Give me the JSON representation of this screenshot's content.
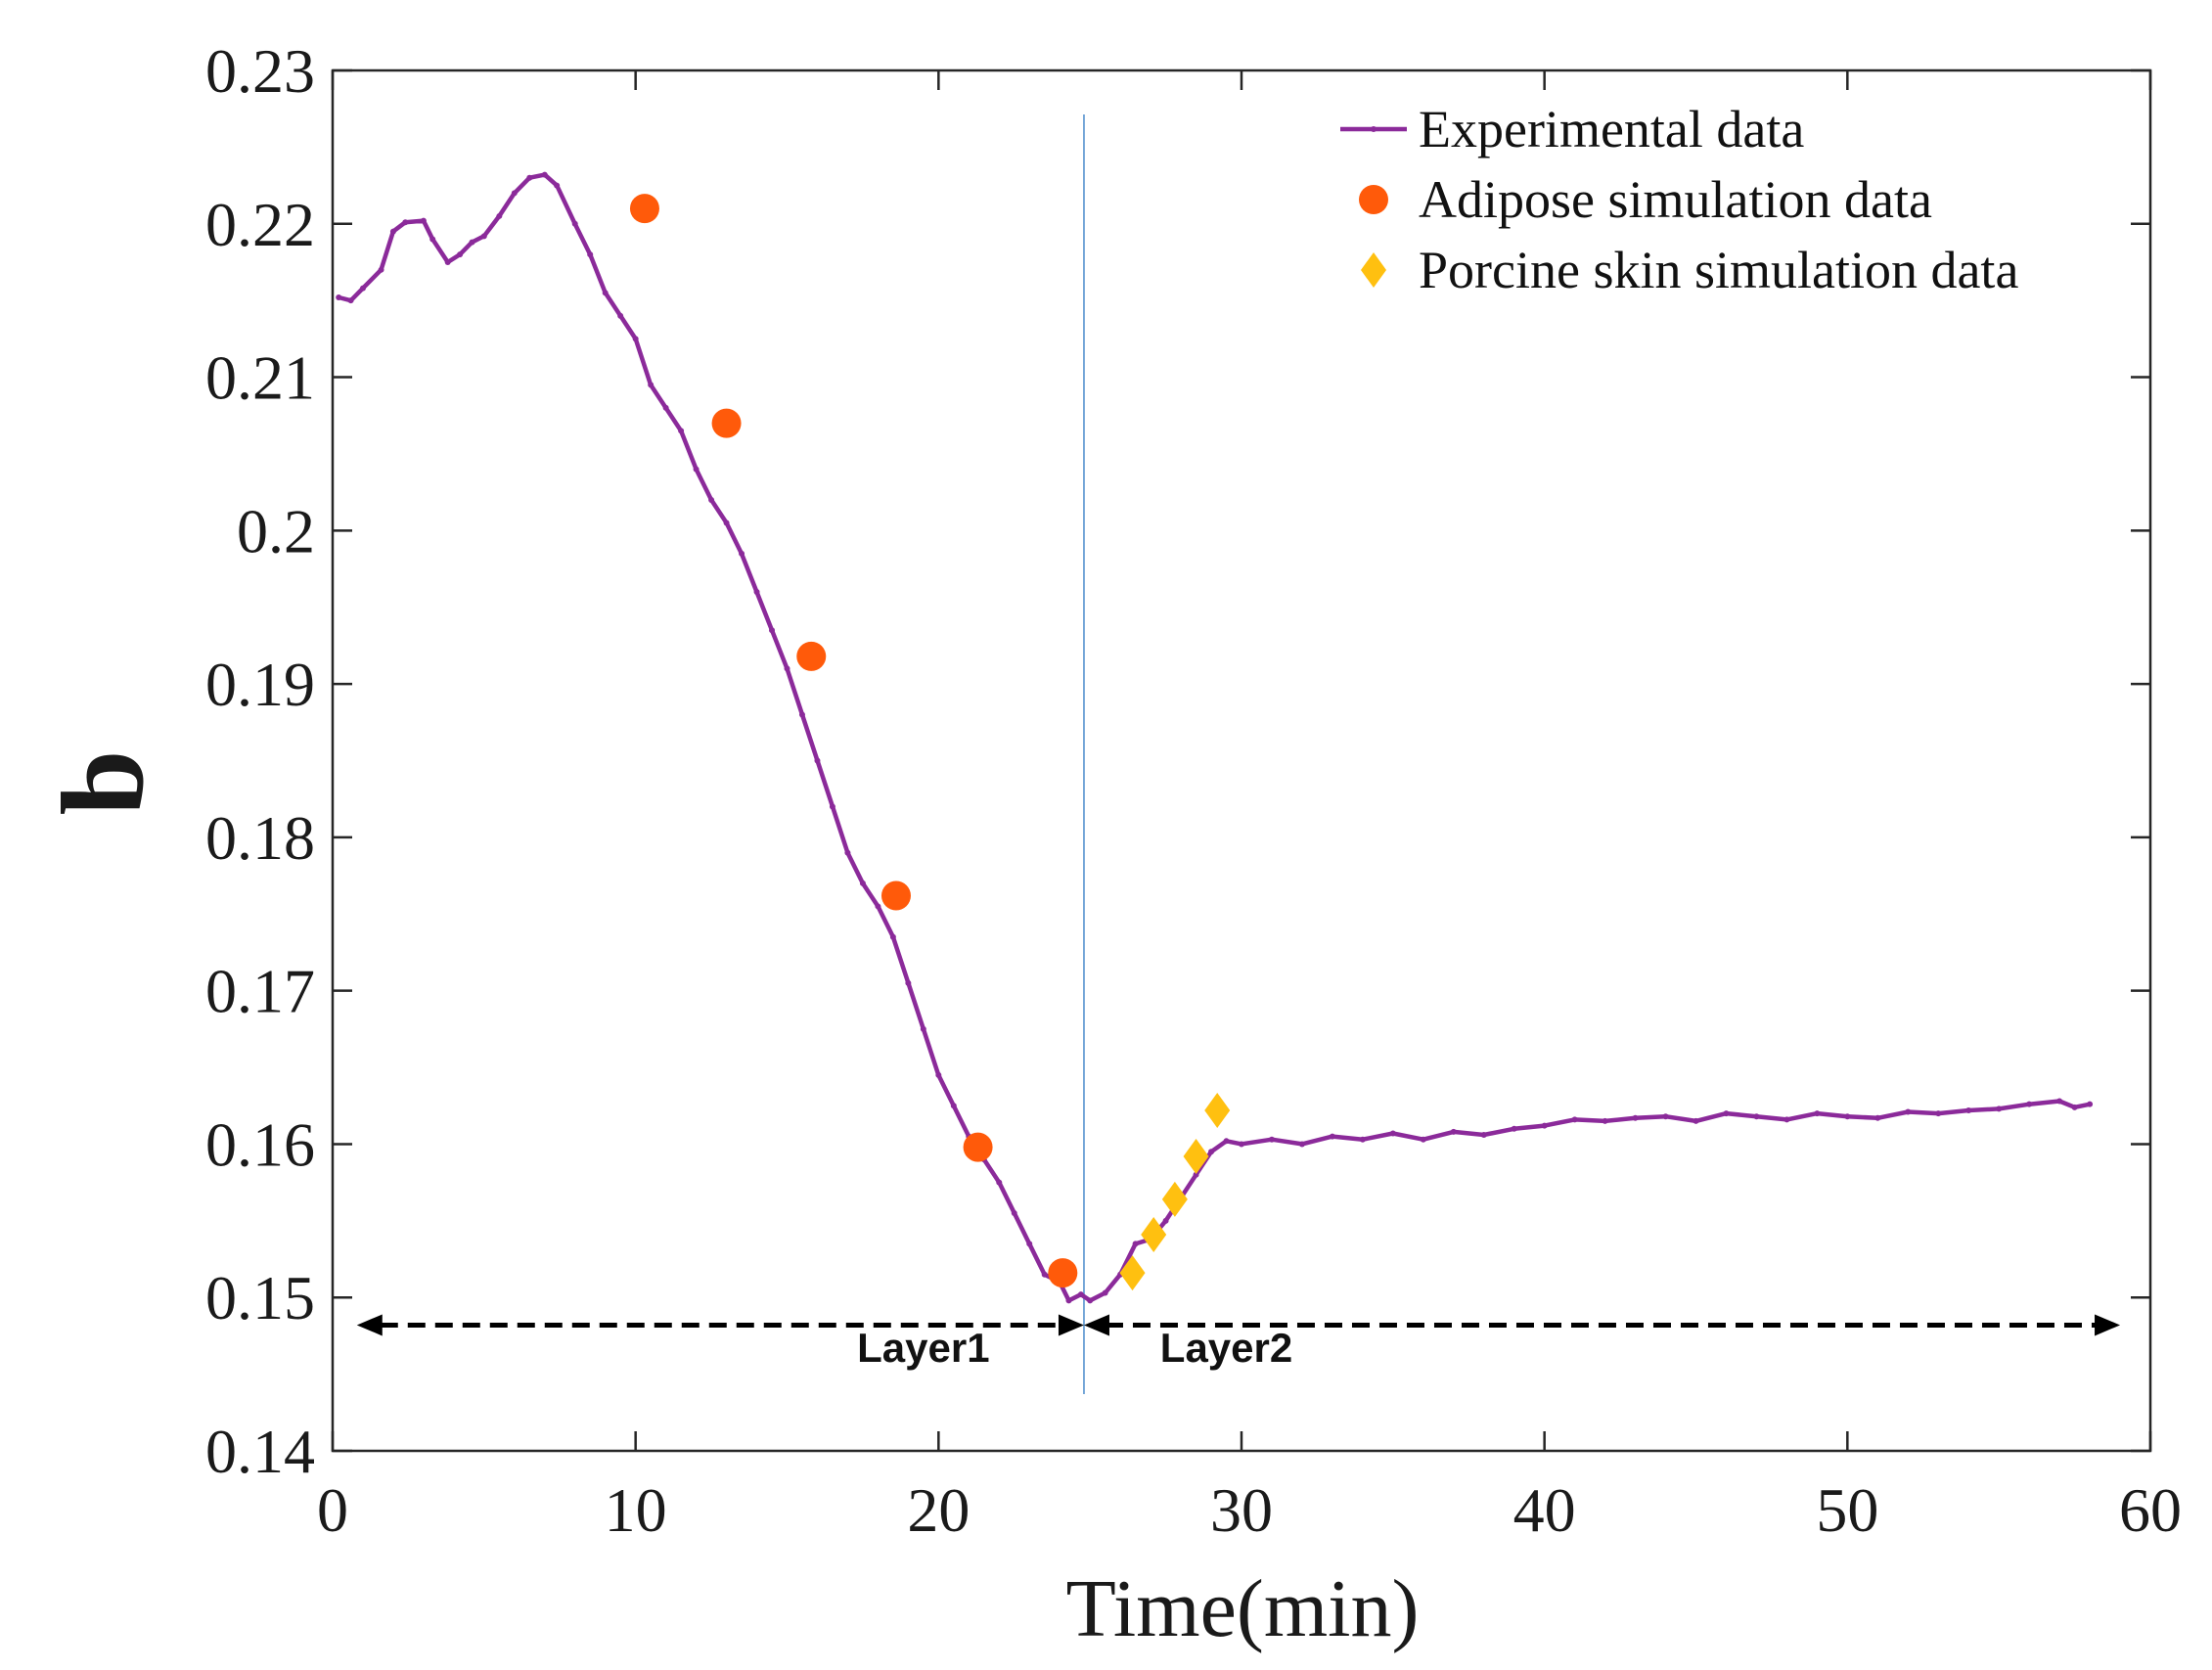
{
  "chart_data": {
    "type": "line",
    "title": "",
    "xlabel": "Time(min)",
    "ylabel": "b",
    "xlim": [
      0,
      60
    ],
    "ylim": [
      0.14,
      0.23
    ],
    "x_ticks": [
      0,
      10,
      20,
      30,
      40,
      50,
      60
    ],
    "x_tick_labels": [
      "0",
      "10",
      "20",
      "30",
      "40",
      "50",
      "60"
    ],
    "y_ticks": [
      0.14,
      0.15,
      0.16,
      0.17,
      0.18,
      0.19,
      0.2,
      0.21,
      0.22,
      0.23
    ],
    "y_tick_labels": [
      "0.14",
      "0.15",
      "0.16",
      "0.17",
      "0.18",
      "0.19",
      "0.2",
      "0.21",
      "0.22",
      "0.23"
    ],
    "grid": false,
    "legend_position": "top-right",
    "colors": {
      "experimental": "#8b2a9a",
      "adipose": "#ff5a0a",
      "porcine": "#ffc010",
      "divider": "#6a9fd4",
      "arrow": "#000000"
    },
    "series": [
      {
        "name": "Experimental data",
        "style": "line",
        "x": [
          0.2,
          0.6,
          1.0,
          1.6,
          2.0,
          2.4,
          3.0,
          3.3,
          3.8,
          4.2,
          4.6,
          5.0,
          5.5,
          6.0,
          6.5,
          7.0,
          7.4,
          8.0,
          8.5,
          9.0,
          9.5,
          10.0,
          10.5,
          11.0,
          11.5,
          12.0,
          12.5,
          13.0,
          13.5,
          14.0,
          14.5,
          15.0,
          15.5,
          16.0,
          16.5,
          17.0,
          17.5,
          18.0,
          18.5,
          19.0,
          19.5,
          20.0,
          20.5,
          21.0,
          21.5,
          22.0,
          22.5,
          23.0,
          23.5,
          24.0,
          24.3,
          24.7,
          25.0,
          25.5,
          26.0,
          26.5,
          27.0,
          27.5,
          28.0,
          28.5,
          29.0,
          29.5,
          30.0,
          31.0,
          32.0,
          33.0,
          34.0,
          35.0,
          36.0,
          37.0,
          38.0,
          39.0,
          40.0,
          41.0,
          42.0,
          43.0,
          44.0,
          45.0,
          46.0,
          47.0,
          48.0,
          49.0,
          50.0,
          51.0,
          52.0,
          53.0,
          54.0,
          55.0,
          56.0,
          57.0,
          57.5,
          58.0
        ],
        "values": [
          0.2152,
          0.215,
          0.2158,
          0.217,
          0.2195,
          0.2201,
          0.2202,
          0.219,
          0.2175,
          0.218,
          0.2188,
          0.2192,
          0.2205,
          0.222,
          0.223,
          0.2232,
          0.2225,
          0.22,
          0.218,
          0.2155,
          0.214,
          0.2125,
          0.2095,
          0.208,
          0.2065,
          0.204,
          0.202,
          0.2005,
          0.1985,
          0.196,
          0.1935,
          0.191,
          0.188,
          0.185,
          0.182,
          0.179,
          0.177,
          0.1755,
          0.1735,
          0.1705,
          0.1675,
          0.1645,
          0.1625,
          0.1605,
          0.159,
          0.1575,
          0.1555,
          0.1535,
          0.1515,
          0.151,
          0.1498,
          0.1502,
          0.1498,
          0.1503,
          0.1515,
          0.1535,
          0.1538,
          0.155,
          0.1565,
          0.158,
          0.1595,
          0.1602,
          0.16,
          0.1603,
          0.16,
          0.1605,
          0.1603,
          0.1607,
          0.1603,
          0.1608,
          0.1606,
          0.161,
          0.1612,
          0.1616,
          0.1615,
          0.1617,
          0.1618,
          0.1615,
          0.162,
          0.1618,
          0.1616,
          0.162,
          0.1618,
          0.1617,
          0.1621,
          0.162,
          0.1622,
          0.1623,
          0.1626,
          0.1628,
          0.1624,
          0.1626
        ]
      },
      {
        "name": "Adipose simulation data",
        "style": "scatter-circle",
        "x": [
          10.3,
          13.0,
          15.8,
          18.6,
          21.3,
          24.1
        ],
        "values": [
          0.221,
          0.207,
          0.1918,
          0.1762,
          0.1598,
          0.1516
        ]
      },
      {
        "name": "Porcine skin simulation data",
        "style": "scatter-diamond",
        "x": [
          26.4,
          27.1,
          27.8,
          28.5,
          29.2
        ],
        "values": [
          0.1516,
          0.1541,
          0.1564,
          0.1592,
          0.1622
        ]
      }
    ],
    "annotations": {
      "divider_x": 24.8,
      "arrow_y": 0.1482,
      "arrow_x_start": 0.8,
      "arrow_x_end": 59.0,
      "layer1_label": "Layer1",
      "layer1_x": 19.5,
      "layer2_label": "Layer2",
      "layer2_x": 29.5,
      "layer_label_y": 0.1458
    }
  }
}
